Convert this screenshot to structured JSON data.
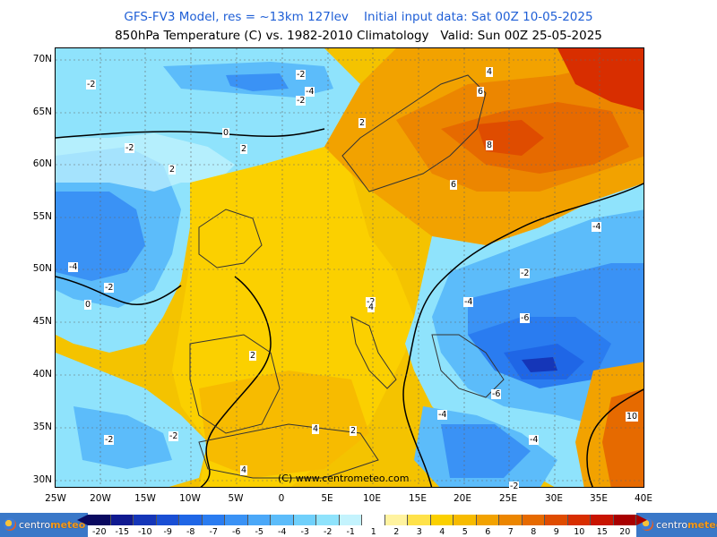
{
  "title_line1": "GFS-FV3 Model, res = ~13km 127lev    Initial input data: Sat 00Z 10-05-2025",
  "title_line2": "850hPa Temperature (C) vs. 1982-2010 Climatology   Valid: Sun 00Z 25-05-2025",
  "copyright": "(C) www.centrometeo.com",
  "lat_labels": [
    "70N",
    "65N",
    "60N",
    "55N",
    "50N",
    "45N",
    "40N",
    "35N",
    "30N"
  ],
  "lon_labels": [
    "25W",
    "20W",
    "15W",
    "10W",
    "5W",
    "0",
    "5E",
    "10E",
    "15E",
    "20E",
    "25E",
    "30E",
    "35E",
    "40E"
  ],
  "contour_labels": [
    {
      "text": "-2",
      "name": "contour-label"
    },
    {
      "text": "-2",
      "name": "contour-label"
    },
    {
      "text": "-4",
      "name": "contour-label"
    },
    {
      "text": "-2",
      "name": "contour-label"
    },
    {
      "text": "-2",
      "name": "contour-label"
    },
    {
      "text": "4",
      "name": "contour-label"
    },
    {
      "text": "6",
      "name": "contour-label"
    },
    {
      "text": "8",
      "name": "contour-label"
    },
    {
      "text": "6",
      "name": "contour-label"
    },
    {
      "text": "2",
      "name": "contour-label"
    },
    {
      "text": "2",
      "name": "contour-label"
    },
    {
      "text": "2",
      "name": "contour-label"
    },
    {
      "text": "0",
      "name": "contour-label"
    },
    {
      "text": "0",
      "name": "contour-label"
    },
    {
      "text": "-4",
      "name": "contour-label"
    },
    {
      "text": "-2",
      "name": "contour-label"
    },
    {
      "text": "-4",
      "name": "contour-label"
    },
    {
      "text": "-2",
      "name": "contour-label"
    },
    {
      "text": "-4",
      "name": "contour-label"
    },
    {
      "text": "-6",
      "name": "contour-label"
    },
    {
      "text": "-2",
      "name": "contour-label"
    },
    {
      "text": "-6",
      "name": "contour-label"
    },
    {
      "text": "-4",
      "name": "contour-label"
    },
    {
      "text": "-4",
      "name": "contour-label"
    },
    {
      "text": "10",
      "name": "contour-label"
    },
    {
      "text": "-2",
      "name": "contour-label"
    },
    {
      "text": "-2",
      "name": "contour-label"
    },
    {
      "text": "2",
      "name": "contour-label"
    },
    {
      "text": "4",
      "name": "contour-label"
    },
    {
      "text": "2",
      "name": "contour-label"
    },
    {
      "text": "4",
      "name": "contour-label"
    },
    {
      "text": "4",
      "name": "contour-label"
    },
    {
      "text": "-2",
      "name": "contour-label"
    }
  ],
  "colorbar": {
    "ticks": [
      "-20",
      "-15",
      "-10",
      "-9",
      "-8",
      "-7",
      "-6",
      "-5",
      "-4",
      "-3",
      "-2",
      "-1",
      "1",
      "2",
      "3",
      "4",
      "5",
      "6",
      "7",
      "8",
      "9",
      "10",
      "15",
      "20"
    ],
    "colors": [
      "#0a0a60",
      "#101a90",
      "#1536b8",
      "#1a4fd4",
      "#1f66e6",
      "#2a7cf0",
      "#3a92f5",
      "#4ba8f8",
      "#5cbcfa",
      "#70d0fb",
      "#8fe3fc",
      "#c4f3fd",
      "#ffffff",
      "#fff3a0",
      "#ffe24a",
      "#fbd000",
      "#f7bb00",
      "#f2a200",
      "#ec8600",
      "#e66a00",
      "#df4c00",
      "#d82e00",
      "#c81400",
      "#a80000"
    ]
  },
  "logo_left": {
    "brand1": "centro",
    "brand2": "meteo"
  },
  "logo_right": {
    "brand1": "centro",
    "brand2": "meteo"
  }
}
